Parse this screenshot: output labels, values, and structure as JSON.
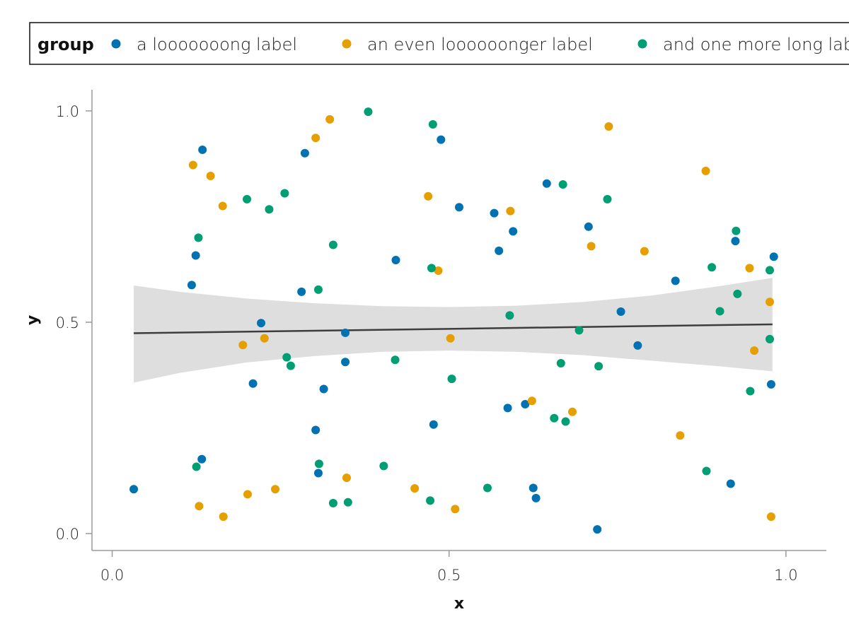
{
  "chart_data": {
    "type": "scatter",
    "title": "",
    "xlabel": "x",
    "ylabel": "y",
    "xlim": [
      -0.03,
      1.06
    ],
    "ylim": [
      -0.04,
      1.05
    ],
    "xticks": [
      0.0,
      0.5,
      1.0
    ],
    "yticks": [
      0.0,
      0.5,
      1.0
    ],
    "xtick_labels": [
      "0.0",
      "0.5",
      "1.0"
    ],
    "ytick_labels": [
      "0.0",
      "0.5",
      "1.0"
    ],
    "grid": false,
    "legend": {
      "title": "group",
      "placement": "top",
      "orientation": "horizontal"
    },
    "series": [
      {
        "name": "a looooooong label",
        "color": "#0072B2",
        "points": [
          [
            0.032,
            0.105
          ],
          [
            0.118,
            0.588
          ],
          [
            0.124,
            0.658
          ],
          [
            0.134,
            0.908
          ],
          [
            0.133,
            0.176
          ],
          [
            0.209,
            0.355
          ],
          [
            0.221,
            0.498
          ],
          [
            0.281,
            0.572
          ],
          [
            0.286,
            0.9
          ],
          [
            0.302,
            0.245
          ],
          [
            0.306,
            0.143
          ],
          [
            0.314,
            0.342
          ],
          [
            0.346,
            0.475
          ],
          [
            0.346,
            0.406
          ],
          [
            0.421,
            0.647
          ],
          [
            0.477,
            0.258
          ],
          [
            0.488,
            0.932
          ],
          [
            0.515,
            0.772
          ],
          [
            0.567,
            0.758
          ],
          [
            0.574,
            0.669
          ],
          [
            0.587,
            0.297
          ],
          [
            0.595,
            0.715
          ],
          [
            0.613,
            0.306
          ],
          [
            0.625,
            0.108
          ],
          [
            0.629,
            0.084
          ],
          [
            0.645,
            0.828
          ],
          [
            0.707,
            0.726
          ],
          [
            0.72,
            0.01
          ],
          [
            0.755,
            0.525
          ],
          [
            0.78,
            0.445
          ],
          [
            0.836,
            0.598
          ],
          [
            0.918,
            0.118
          ],
          [
            0.925,
            0.692
          ],
          [
            0.978,
            0.353
          ],
          [
            0.982,
            0.655
          ]
        ]
      },
      {
        "name": "an even loooooonger label",
        "color": "#E69F00",
        "points": [
          [
            0.12,
            0.872
          ],
          [
            0.129,
            0.065
          ],
          [
            0.146,
            0.846
          ],
          [
            0.164,
            0.775
          ],
          [
            0.165,
            0.04
          ],
          [
            0.194,
            0.446
          ],
          [
            0.201,
            0.093
          ],
          [
            0.226,
            0.462
          ],
          [
            0.242,
            0.105
          ],
          [
            0.302,
            0.936
          ],
          [
            0.323,
            0.98
          ],
          [
            0.348,
            0.132
          ],
          [
            0.449,
            0.107
          ],
          [
            0.469,
            0.798
          ],
          [
            0.484,
            0.622
          ],
          [
            0.502,
            0.462
          ],
          [
            0.509,
            0.058
          ],
          [
            0.591,
            0.763
          ],
          [
            0.623,
            0.314
          ],
          [
            0.683,
            0.288
          ],
          [
            0.711,
            0.68
          ],
          [
            0.737,
            0.963
          ],
          [
            0.79,
            0.668
          ],
          [
            0.843,
            0.232
          ],
          [
            0.881,
            0.858
          ],
          [
            0.946,
            0.628
          ],
          [
            0.953,
            0.433
          ],
          [
            0.976,
            0.548
          ],
          [
            0.978,
            0.04
          ]
        ]
      },
      {
        "name": "and one more long label",
        "color": "#009E73",
        "points": [
          [
            0.125,
            0.158
          ],
          [
            0.128,
            0.7
          ],
          [
            0.2,
            0.791
          ],
          [
            0.233,
            0.767
          ],
          [
            0.256,
            0.805
          ],
          [
            0.259,
            0.417
          ],
          [
            0.265,
            0.397
          ],
          [
            0.306,
            0.577
          ],
          [
            0.307,
            0.165
          ],
          [
            0.328,
            0.683
          ],
          [
            0.328,
            0.072
          ],
          [
            0.35,
            0.074
          ],
          [
            0.38,
            0.998
          ],
          [
            0.403,
            0.16
          ],
          [
            0.42,
            0.411
          ],
          [
            0.472,
            0.078
          ],
          [
            0.474,
            0.628
          ],
          [
            0.476,
            0.968
          ],
          [
            0.504,
            0.366
          ],
          [
            0.557,
            0.108
          ],
          [
            0.59,
            0.516
          ],
          [
            0.656,
            0.273
          ],
          [
            0.666,
            0.403
          ],
          [
            0.669,
            0.826
          ],
          [
            0.673,
            0.265
          ],
          [
            0.693,
            0.481
          ],
          [
            0.722,
            0.396
          ],
          [
            0.735,
            0.791
          ],
          [
            0.882,
            0.148
          ],
          [
            0.89,
            0.63
          ],
          [
            0.902,
            0.526
          ],
          [
            0.926,
            0.716
          ],
          [
            0.928,
            0.567
          ],
          [
            0.947,
            0.337
          ],
          [
            0.976,
            0.623
          ],
          [
            0.976,
            0.46
          ]
        ]
      }
    ],
    "trend": {
      "type": "linear",
      "color": "#3d3d3d",
      "band_color": "#dedede",
      "line": [
        [
          0.032,
          0.474
        ],
        [
          0.98,
          0.495
        ]
      ],
      "band_upper": [
        [
          0.032,
          0.587
        ],
        [
          0.1,
          0.572
        ],
        [
          0.2,
          0.556
        ],
        [
          0.3,
          0.545
        ],
        [
          0.4,
          0.538
        ],
        [
          0.5,
          0.536
        ],
        [
          0.6,
          0.539
        ],
        [
          0.7,
          0.548
        ],
        [
          0.8,
          0.563
        ],
        [
          0.9,
          0.585
        ],
        [
          0.98,
          0.605
        ]
      ],
      "band_lower": [
        [
          0.032,
          0.357
        ],
        [
          0.1,
          0.38
        ],
        [
          0.2,
          0.405
        ],
        [
          0.3,
          0.42
        ],
        [
          0.4,
          0.43
        ],
        [
          0.5,
          0.433
        ],
        [
          0.6,
          0.43
        ],
        [
          0.7,
          0.422
        ],
        [
          0.8,
          0.409
        ],
        [
          0.9,
          0.396
        ],
        [
          0.98,
          0.384
        ]
      ]
    }
  }
}
